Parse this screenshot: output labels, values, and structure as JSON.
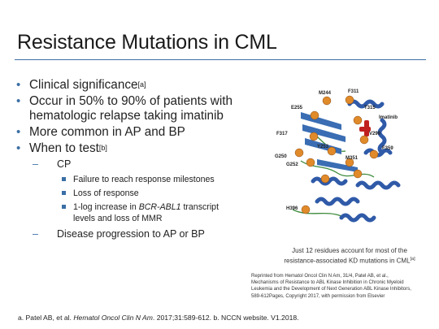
{
  "title": "Resistance Mutations in CML",
  "bullets": {
    "clinical_significance": "Clinical significance",
    "clinical_ref": "[a]",
    "occur_line1": "Occur in 50% to 90% of patients with",
    "occur_line2": "hematologic relapse taking imatinib",
    "more_common": "More common in AP and BP",
    "when_to_test": "When to test",
    "when_ref": "[b]",
    "cp": "CP",
    "sub_failure": "Failure to reach response milestones",
    "sub_loss": "Loss of response",
    "sub_log_prefix": "1-log increase in ",
    "sub_log_gene": "BCR-ABL1",
    "sub_log_suffix": " transcript",
    "sub_log_line2": "levels and loss of MMR",
    "disease_progression": "Disease progression to AP or BP"
  },
  "figure": {
    "labels": {
      "m244": "M244",
      "f311": "F311",
      "e255": "E255",
      "t315": "T315",
      "imatinib": "Imatinib",
      "f317": "F317",
      "v299": "V299",
      "y253": "Y253",
      "f359": "F359",
      "g250": "G250",
      "g252": "G252",
      "m351": "M351",
      "h396": "H396"
    },
    "colors": {
      "helix": "#2f5aa8",
      "sheet": "#3a6db3",
      "loop": "#3c8a3c",
      "sphere": "#e08a2a",
      "ligand": "#c02020"
    }
  },
  "caption_line1": "Just 12 residues account for most of the",
  "caption_line2": "resistance-associated KD mutations in CML",
  "caption_ref": "[a]",
  "reprint": {
    "line1": "Reprinted from Hematol Oncol Clin N Am, 31/4, Patel AB, et al.,",
    "line2": "Mechanisms of Resistance to ABL Kinase Inhibition in Chronic Myeloid",
    "line3": "Leukemia and the Development of Next Generation ABL Kinase Inhibitors,",
    "line4": "589-612Pages, Copyright 2017, with permission from Elsevier"
  },
  "footnote": {
    "prefix": "a. Patel AB, et al. ",
    "journal": "Hematol Oncol Clin N Am",
    "suffix": ". 2017;31:589-612. b. NCCN website. V1.2018."
  }
}
